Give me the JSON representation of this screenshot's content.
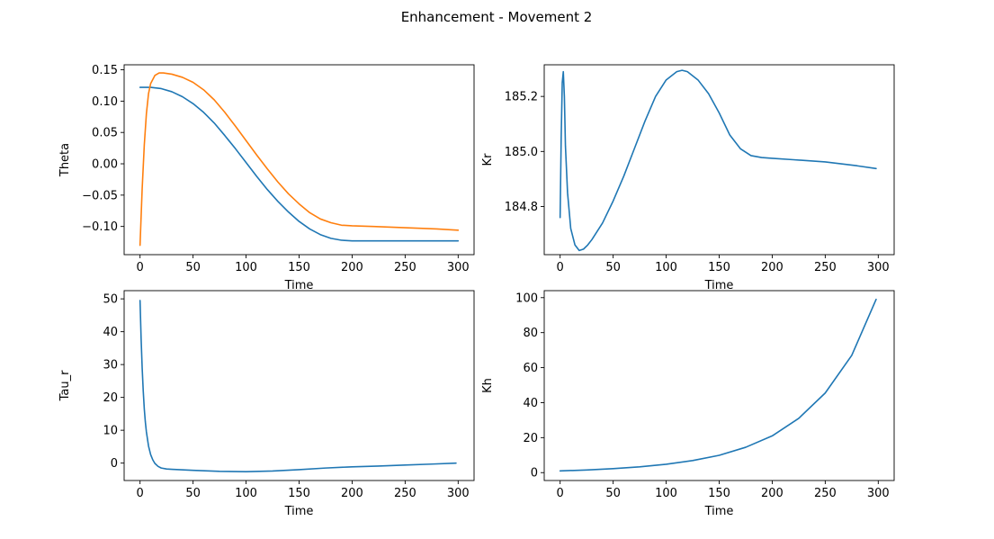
{
  "figure": {
    "title": "Enhancement - Movement 2"
  },
  "colors": {
    "series1": "#1f77b4",
    "series2": "#ff7f0e"
  },
  "chart_data": [
    {
      "type": "line",
      "xlabel": "Time",
      "ylabel": "Theta",
      "xlim": [
        -15,
        315
      ],
      "ylim": [
        -0.145,
        0.158
      ],
      "xticks": [
        0,
        50,
        100,
        150,
        200,
        250,
        300
      ],
      "yticks": [
        -0.1,
        -0.05,
        0.0,
        0.05,
        0.1,
        0.15
      ],
      "ytick_labels": [
        "−0.10",
        "−0.05",
        "0.00",
        "0.05",
        "0.10",
        "0.15"
      ],
      "series": [
        {
          "color": "#1f77b4",
          "x": [
            0,
            10,
            20,
            30,
            40,
            50,
            60,
            70,
            80,
            90,
            100,
            110,
            120,
            130,
            140,
            150,
            160,
            170,
            180,
            190,
            200,
            220,
            250,
            280,
            300
          ],
          "y": [
            0.122,
            0.122,
            0.12,
            0.115,
            0.107,
            0.096,
            0.082,
            0.065,
            0.045,
            0.024,
            0.002,
            -0.02,
            -0.041,
            -0.06,
            -0.077,
            -0.092,
            -0.104,
            -0.113,
            -0.119,
            -0.122,
            -0.123,
            -0.123,
            -0.123,
            -0.123,
            -0.123
          ]
        },
        {
          "color": "#ff7f0e",
          "x": [
            0,
            2,
            4,
            6,
            8,
            10,
            14,
            18,
            22,
            30,
            40,
            50,
            60,
            70,
            80,
            90,
            100,
            110,
            120,
            130,
            140,
            150,
            160,
            170,
            180,
            190,
            200,
            220,
            250,
            280,
            300
          ],
          "y": [
            -0.13,
            -0.04,
            0.03,
            0.08,
            0.112,
            0.128,
            0.141,
            0.145,
            0.145,
            0.143,
            0.138,
            0.13,
            0.118,
            0.102,
            0.082,
            0.06,
            0.037,
            0.014,
            -0.008,
            -0.029,
            -0.048,
            -0.064,
            -0.078,
            -0.088,
            -0.094,
            -0.098,
            -0.099,
            -0.1,
            -0.102,
            -0.104,
            -0.106
          ]
        }
      ]
    },
    {
      "type": "line",
      "xlabel": "Time",
      "ylabel": "Kr",
      "xlim": [
        -15,
        315
      ],
      "ylim": [
        184.625,
        185.315
      ],
      "xticks": [
        0,
        50,
        100,
        150,
        200,
        250,
        300
      ],
      "yticks": [
        184.8,
        185.0,
        185.2
      ],
      "ytick_labels": [
        "184.8",
        "185.0",
        "185.2"
      ],
      "series": [
        {
          "color": "#1f77b4",
          "x": [
            0,
            1,
            2,
            3,
            4,
            5,
            7,
            10,
            14,
            18,
            22,
            26,
            30,
            40,
            50,
            60,
            70,
            80,
            90,
            100,
            110,
            115,
            120,
            130,
            140,
            150,
            160,
            170,
            180,
            190,
            200,
            220,
            250,
            280,
            298
          ],
          "y": [
            184.76,
            185.05,
            185.25,
            185.29,
            185.2,
            185.02,
            184.85,
            184.72,
            184.66,
            184.64,
            184.645,
            184.66,
            184.68,
            184.74,
            184.82,
            184.91,
            185.01,
            185.11,
            185.2,
            185.26,
            185.29,
            185.295,
            185.29,
            185.26,
            185.21,
            185.14,
            185.06,
            185.01,
            184.985,
            184.978,
            184.975,
            184.97,
            184.962,
            184.948,
            184.938
          ]
        }
      ]
    },
    {
      "type": "line",
      "xlabel": "Time",
      "ylabel": "Tau_r",
      "xlim": [
        -15,
        315
      ],
      "ylim": [
        -5.3,
        52.5
      ],
      "xticks": [
        0,
        50,
        100,
        150,
        200,
        250,
        300
      ],
      "yticks": [
        0,
        10,
        20,
        30,
        40,
        50
      ],
      "ytick_labels": [
        "0",
        "10",
        "20",
        "30",
        "40",
        "50"
      ],
      "series": [
        {
          "color": "#1f77b4",
          "x": [
            0,
            1,
            2,
            3,
            4,
            5,
            6,
            8,
            10,
            12,
            14,
            17,
            20,
            25,
            30,
            50,
            75,
            100,
            125,
            150,
            175,
            195,
            200,
            225,
            250,
            275,
            298
          ],
          "y": [
            49.5,
            38,
            29,
            22,
            16.5,
            12.5,
            9.5,
            5.2,
            2.6,
            1.0,
            -0.1,
            -1.0,
            -1.5,
            -1.8,
            -1.9,
            -2.2,
            -2.5,
            -2.6,
            -2.4,
            -2.0,
            -1.5,
            -1.2,
            -1.15,
            -0.9,
            -0.6,
            -0.3,
            0.0
          ]
        }
      ]
    },
    {
      "type": "line",
      "xlabel": "Time",
      "ylabel": "Kh",
      "xlim": [
        -15,
        315
      ],
      "ylim": [
        -4.5,
        104
      ],
      "xticks": [
        0,
        50,
        100,
        150,
        200,
        250,
        300
      ],
      "yticks": [
        0,
        20,
        40,
        60,
        80,
        100
      ],
      "ytick_labels": [
        "0",
        "20",
        "40",
        "60",
        "80",
        "100"
      ],
      "series": [
        {
          "color": "#1f77b4",
          "x": [
            0,
            25,
            50,
            75,
            100,
            125,
            150,
            175,
            200,
            225,
            250,
            275,
            298
          ],
          "y": [
            1.0,
            1.5,
            2.3,
            3.3,
            4.8,
            6.9,
            9.9,
            14.5,
            21.0,
            31.0,
            45.5,
            67.0,
            99.0
          ]
        }
      ]
    }
  ]
}
